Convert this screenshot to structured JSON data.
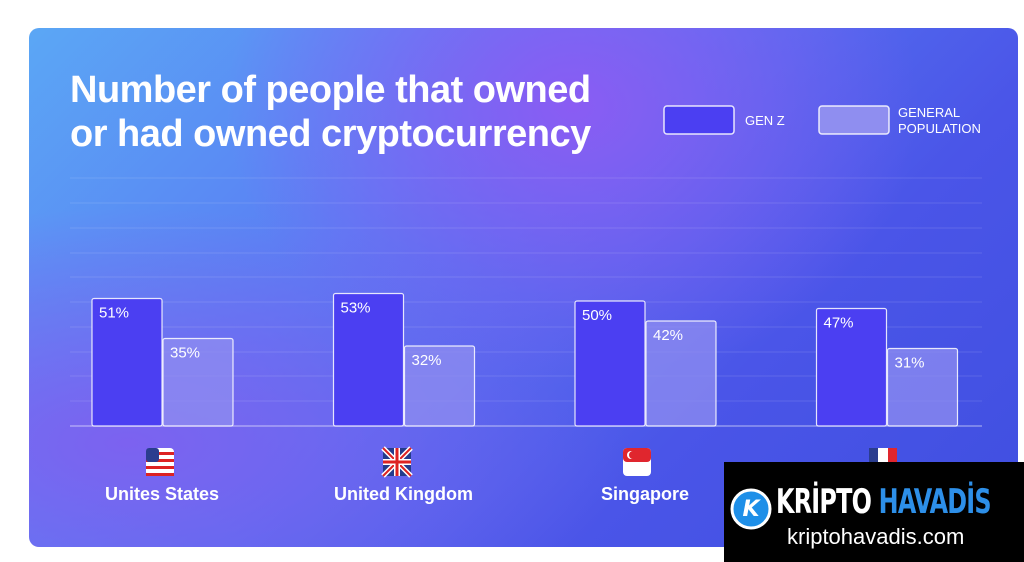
{
  "chart_data": {
    "type": "bar",
    "title": "Number of people that owned or had owned cryptocurrency",
    "categories": [
      "Unites States",
      "United Kingdom",
      "Singapore",
      null
    ],
    "series": [
      {
        "name": "GEN Z",
        "color": "#4b3ff2",
        "values": [
          51,
          53,
          50,
          47
        ],
        "value_labels": [
          "51%",
          "53%",
          "50%",
          "47%"
        ]
      },
      {
        "name": "GENERAL POPULATION",
        "color": "#8f8ef0",
        "values": [
          35,
          32,
          42,
          31
        ],
        "value_labels": [
          "35%",
          "32%",
          "42%",
          "31%"
        ]
      }
    ],
    "ylim": [
      0,
      100
    ]
  },
  "watermark": {
    "brand": [
      "KRİPTO",
      "HAVADİS"
    ],
    "url": "kriptohavadis.com"
  }
}
